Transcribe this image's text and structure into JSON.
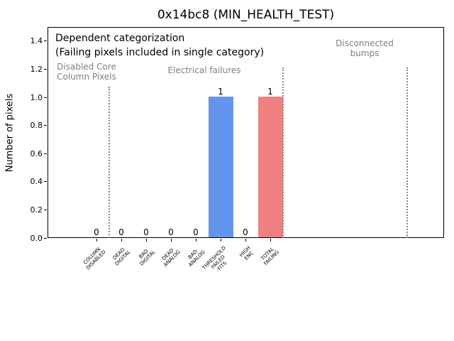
{
  "chart_data": {
    "type": "bar",
    "title": "0x14bc8 (MIN_HEALTH_TEST)",
    "ylabel": "Number of pixels",
    "xlabel": "",
    "categories": [
      "COLUMN\nDISABLED",
      "DEAD\nDIGITAL",
      "BAD\nDIGITAL",
      "DEAD\nANALOG",
      "BAD\nANALOG",
      "THRESHOLD\nFAILED\nFITS",
      "HIGH\nENC",
      "TOTAL\nFAILING"
    ],
    "values": [
      0,
      0,
      0,
      0,
      0,
      1,
      0,
      1
    ],
    "value_labels": [
      "0",
      "0",
      "0",
      "0",
      "0",
      "1",
      "0",
      "1"
    ],
    "bar_colors": [
      null,
      null,
      null,
      null,
      null,
      "#6495ed",
      null,
      "#f08080"
    ],
    "ylim": [
      0,
      1.5
    ],
    "ytick_labels": [
      "0.0",
      "0.2",
      "0.4",
      "0.6",
      "0.8",
      "1.0",
      "1.2",
      "1.4"
    ],
    "grid": false,
    "legend": null,
    "annotations": [
      {
        "text": "Dependent categorization",
        "color": "#000000"
      },
      {
        "text": "(Failing pixels included in single category)",
        "color": "#000000"
      },
      {
        "text": "Disabled Core\nColumn Pixels",
        "color": "#808080"
      },
      {
        "text": "Electrical failures",
        "color": "#808080"
      },
      {
        "text": "Disconnected\nbumps",
        "color": "#808080"
      }
    ],
    "divider_positions": [
      0.5,
      7.5,
      12.5
    ],
    "colors": {
      "bar_blue": "#6495ed",
      "bar_red": "#f08080",
      "section_text_gray": "#808080",
      "divider_gray": "#8a8a8a"
    }
  }
}
